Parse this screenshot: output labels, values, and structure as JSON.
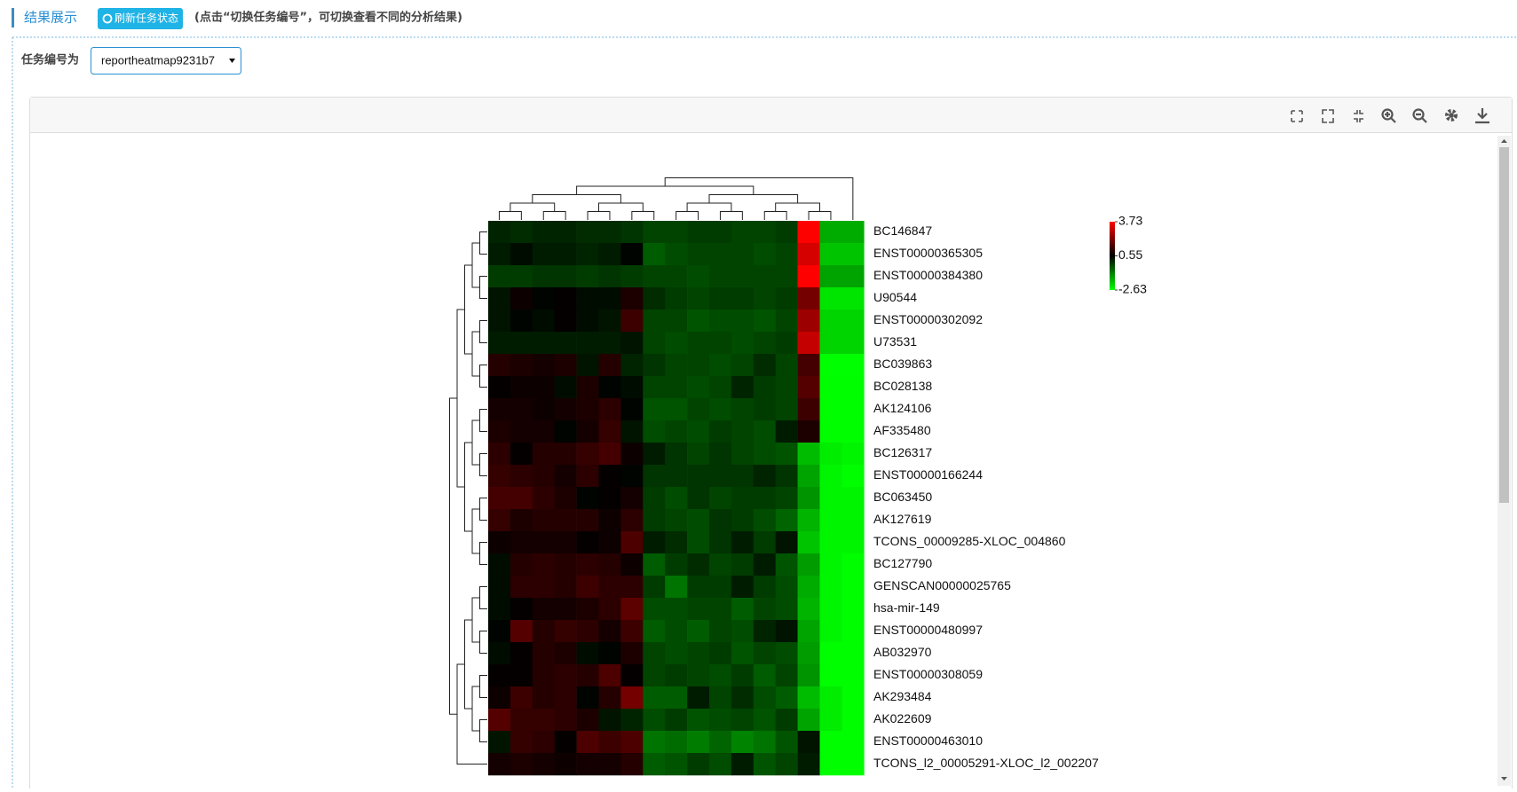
{
  "header": {
    "title": "结果展示",
    "refresh_button": "刷新任务状态",
    "hint": "(点击“切换任务编号”，可切换查看不同的分析结果)"
  },
  "task": {
    "label": "任务编号为",
    "selected": "reportheatmap9231b7"
  },
  "chart_data": {
    "type": "heatmap",
    "rows": [
      "BC146847",
      "ENST00000365305",
      "ENST00000384380",
      "U90544",
      "ENST00000302092",
      "U73531",
      "BC039863",
      "BC028138",
      "AK124106",
      "AF335480",
      "BC126317",
      "ENST00000166244",
      "BC063450",
      "AK127619",
      "TCONS_00009285-XLOC_004860",
      "BC127790",
      "GENSCAN00000025765",
      "hsa-mir-149",
      "ENST00000480997",
      "AB032970",
      "ENST00000308059",
      "AK293484",
      "AK022609",
      "ENST00000463010",
      "TCONS_l2_00005291-XLOC_l2_002207"
    ],
    "values": [
      [
        0.1,
        0.0,
        0.1,
        0.1,
        0.0,
        0.0,
        -0.1,
        -0.3,
        -0.3,
        -0.2,
        -0.2,
        -0.3,
        -0.3,
        -0.2,
        3.7,
        -1.6,
        -1.6
      ],
      [
        0.2,
        0.4,
        0.2,
        0.2,
        0.1,
        0.2,
        0.5,
        -0.6,
        -0.4,
        -0.3,
        -0.3,
        -0.3,
        -0.4,
        -0.3,
        3.2,
        -1.9,
        -1.9
      ],
      [
        -0.2,
        -0.2,
        -0.1,
        -0.1,
        -0.2,
        -0.1,
        -0.2,
        -0.3,
        -0.3,
        -0.4,
        -0.3,
        -0.3,
        -0.3,
        -0.3,
        3.73,
        -1.5,
        -1.5
      ],
      [
        0.3,
        0.7,
        0.5,
        0.6,
        0.4,
        0.4,
        0.9,
        0.0,
        -0.2,
        -0.3,
        -0.2,
        -0.2,
        -0.3,
        -0.2,
        2.0,
        -2.3,
        -2.3
      ],
      [
        0.3,
        0.5,
        0.4,
        0.6,
        0.4,
        0.3,
        1.3,
        -0.3,
        -0.3,
        -0.5,
        -0.4,
        -0.4,
        -0.5,
        -0.3,
        2.5,
        -2.1,
        -2.1
      ],
      [
        0.2,
        0.2,
        0.2,
        0.2,
        0.2,
        0.2,
        0.3,
        -0.3,
        -0.4,
        -0.3,
        -0.3,
        -0.4,
        -0.3,
        -0.2,
        3.0,
        -2.1,
        -2.1
      ],
      [
        1.0,
        0.9,
        0.8,
        0.9,
        0.3,
        1.0,
        0.1,
        -0.1,
        -0.3,
        -0.3,
        -0.4,
        -0.3,
        0.0,
        -0.3,
        1.4,
        -2.63,
        -2.63
      ],
      [
        0.6,
        0.7,
        0.7,
        0.4,
        0.9,
        0.5,
        0.4,
        -0.3,
        -0.3,
        -0.4,
        -0.3,
        0.1,
        -0.2,
        -0.3,
        1.6,
        -2.6,
        -2.6
      ],
      [
        0.8,
        0.8,
        0.7,
        0.8,
        0.9,
        1.1,
        0.5,
        -0.5,
        -0.5,
        -0.3,
        -0.4,
        -0.3,
        -0.2,
        -0.3,
        1.3,
        -2.6,
        -2.6
      ],
      [
        0.9,
        0.8,
        0.8,
        0.5,
        0.8,
        1.2,
        0.3,
        -0.4,
        -0.3,
        -0.4,
        -0.2,
        -0.3,
        -0.4,
        0.2,
        0.9,
        -2.6,
        -2.6
      ],
      [
        1.1,
        0.6,
        1.0,
        1.0,
        1.2,
        1.4,
        0.7,
        0.2,
        -0.1,
        -0.3,
        -0.1,
        -0.3,
        -0.4,
        -0.5,
        -1.8,
        -2.4,
        -2.5
      ],
      [
        1.2,
        1.1,
        1.0,
        0.8,
        1.1,
        0.6,
        0.5,
        -0.1,
        -0.1,
        -0.1,
        -0.1,
        -0.1,
        0.1,
        -0.1,
        -1.5,
        -2.5,
        -2.6
      ],
      [
        1.4,
        1.4,
        1.1,
        0.9,
        0.5,
        0.6,
        0.8,
        -0.2,
        -0.4,
        -0.1,
        -0.3,
        -0.2,
        -0.2,
        -0.3,
        -1.3,
        -2.5,
        -2.5
      ],
      [
        1.2,
        0.9,
        1.0,
        1.0,
        1.0,
        0.7,
        1.1,
        -0.2,
        -0.3,
        -0.4,
        -0.1,
        -0.2,
        -0.4,
        -0.7,
        -1.7,
        -2.5,
        -2.5
      ],
      [
        0.7,
        0.8,
        0.8,
        0.8,
        0.6,
        0.7,
        1.5,
        0.2,
        0.0,
        -0.4,
        -0.1,
        0.2,
        -0.2,
        0.3,
        -1.9,
        -2.5,
        -2.5
      ],
      [
        0.4,
        1.0,
        1.1,
        1.0,
        1.1,
        1.0,
        0.7,
        -0.6,
        -0.2,
        0.0,
        -0.3,
        -0.2,
        0.2,
        -0.5,
        -1.4,
        -2.5,
        -2.6
      ],
      [
        0.4,
        1.1,
        1.1,
        1.0,
        1.3,
        1.1,
        1.1,
        -0.2,
        -0.9,
        -0.2,
        -0.2,
        0.2,
        -0.2,
        -0.4,
        -1.6,
        -2.5,
        -2.6
      ],
      [
        0.4,
        0.6,
        0.8,
        0.8,
        0.9,
        1.1,
        1.7,
        -0.4,
        -0.4,
        -0.3,
        -0.3,
        -0.6,
        -0.3,
        -0.4,
        -1.7,
        -2.5,
        -2.6
      ],
      [
        0.5,
        1.6,
        1.0,
        1.2,
        1.1,
        0.8,
        1.3,
        -0.6,
        -0.4,
        -0.6,
        -0.3,
        -0.4,
        0.1,
        0.3,
        -1.5,
        -2.5,
        -2.6
      ],
      [
        0.4,
        0.6,
        1.0,
        0.9,
        0.4,
        0.5,
        0.9,
        -0.3,
        -0.4,
        -0.3,
        -0.2,
        -0.5,
        -0.3,
        -0.4,
        -1.4,
        -2.6,
        -2.6
      ],
      [
        0.6,
        0.6,
        1.0,
        1.1,
        1.0,
        1.5,
        0.6,
        -0.3,
        -0.2,
        -0.3,
        -0.4,
        -0.2,
        -0.6,
        -0.3,
        -1.3,
        -2.6,
        -2.6
      ],
      [
        0.7,
        1.3,
        1.0,
        1.1,
        0.5,
        1.0,
        2.0,
        -0.6,
        -0.6,
        0.2,
        -0.3,
        0.0,
        -0.4,
        -0.6,
        -1.8,
        -2.4,
        -2.6
      ],
      [
        1.6,
        1.2,
        1.2,
        1.1,
        0.9,
        0.3,
        0.1,
        -0.4,
        -0.2,
        -0.5,
        -0.4,
        -0.3,
        -0.5,
        -0.2,
        -1.5,
        -2.4,
        -2.6
      ],
      [
        0.3,
        1.2,
        1.1,
        0.6,
        1.5,
        1.3,
        1.5,
        -0.9,
        -0.8,
        -1.0,
        -0.7,
        -1.1,
        -0.9,
        -0.5,
        0.3,
        -2.6,
        -2.6
      ],
      [
        0.8,
        0.9,
        0.8,
        0.7,
        0.8,
        0.8,
        1.0,
        -0.6,
        -0.5,
        -0.2,
        -0.4,
        0.2,
        -0.5,
        -0.3,
        0.2,
        -2.6,
        -2.6
      ]
    ],
    "zlim": [
      -2.63,
      3.73
    ],
    "zticks": [
      3.73,
      0.55,
      -2.63
    ],
    "colors": [
      "#00ff00",
      "#000000",
      "#ff0000"
    ]
  }
}
